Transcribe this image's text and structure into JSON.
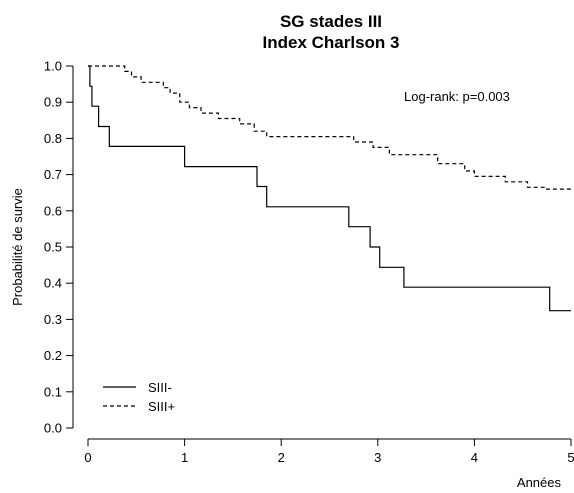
{
  "chart_data": {
    "type": "line",
    "subtype": "kaplan-meier step",
    "title": [
      "SG stades III",
      "Index Charlson 3"
    ],
    "xlabel": "Années",
    "ylabel": "Probabilité de survie",
    "xlim": [
      0,
      5
    ],
    "ylim": [
      0,
      1
    ],
    "xticks": [
      "0",
      "1",
      "2",
      "3",
      "4",
      "5"
    ],
    "yticks": [
      "0.0",
      "0.1",
      "0.2",
      "0.3",
      "0.4",
      "0.5",
      "0.6",
      "0.7",
      "0.8",
      "0.9",
      "1.0"
    ],
    "annotation": "Log-rank: p=0.003",
    "grid": false,
    "legend_position": "bottom-left",
    "series": [
      {
        "name": "SIII-",
        "line_style": "solid",
        "color": "#000000",
        "steps": [
          [
            0.0,
            1.0
          ],
          [
            0.02,
            0.944
          ],
          [
            0.04,
            0.889
          ],
          [
            0.11,
            0.833
          ],
          [
            0.22,
            0.778
          ],
          [
            1.0,
            0.722
          ],
          [
            1.75,
            0.667
          ],
          [
            1.85,
            0.611
          ],
          [
            2.7,
            0.556
          ],
          [
            2.92,
            0.5
          ],
          [
            3.02,
            0.444
          ],
          [
            3.27,
            0.389
          ],
          [
            4.78,
            0.324
          ],
          [
            5.0,
            0.324
          ]
        ]
      },
      {
        "name": "SIII+",
        "line_style": "dashed",
        "color": "#000000",
        "steps": [
          [
            0.0,
            1.0
          ],
          [
            0.38,
            0.985
          ],
          [
            0.45,
            0.97
          ],
          [
            0.55,
            0.955
          ],
          [
            0.78,
            0.94
          ],
          [
            0.85,
            0.925
          ],
          [
            0.95,
            0.9
          ],
          [
            1.05,
            0.885
          ],
          [
            1.17,
            0.87
          ],
          [
            1.35,
            0.855
          ],
          [
            1.57,
            0.84
          ],
          [
            1.72,
            0.82
          ],
          [
            1.85,
            0.805
          ],
          [
            2.75,
            0.79
          ],
          [
            2.95,
            0.775
          ],
          [
            3.12,
            0.755
          ],
          [
            3.62,
            0.73
          ],
          [
            3.9,
            0.71
          ],
          [
            4.0,
            0.695
          ],
          [
            4.32,
            0.68
          ],
          [
            4.55,
            0.665
          ],
          [
            4.73,
            0.66
          ],
          [
            5.0,
            0.66
          ]
        ]
      }
    ]
  }
}
